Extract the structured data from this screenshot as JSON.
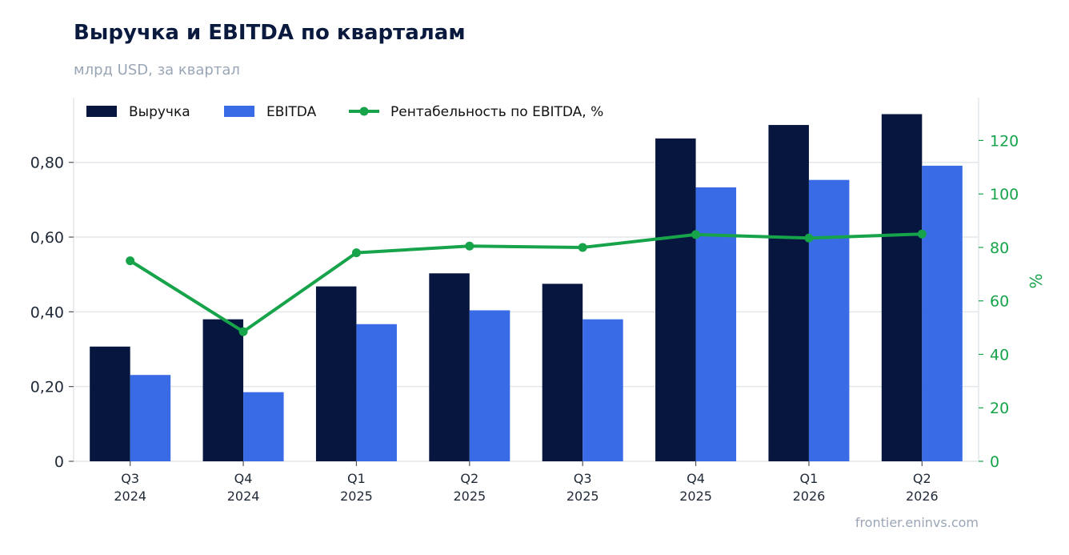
{
  "title": "Выручка и EBITDA по кварталам",
  "subtitle": "млрд USD, за квартал",
  "source": "frontier.eninvs.com",
  "colors": {
    "revenue": "#06163f",
    "ebitda": "#3a6be6",
    "margin": "#16a34a",
    "grid": "#e3e7ec",
    "axis_text": "#1f2937",
    "muted": "#9aa6b6"
  },
  "chart_data": {
    "type": "bar",
    "categories": [
      [
        "Q3",
        "2024"
      ],
      [
        "Q4",
        "2024"
      ],
      [
        "Q1",
        "2025"
      ],
      [
        "Q2",
        "2025"
      ],
      [
        "Q3",
        "2025"
      ],
      [
        "Q4",
        "2025"
      ],
      [
        "Q1",
        "2026"
      ],
      [
        "Q2",
        "2026"
      ]
    ],
    "series": [
      {
        "name": "Выручка",
        "type": "bar",
        "axis": "left",
        "values": [
          0.307,
          0.38,
          0.468,
          0.503,
          0.475,
          0.864,
          0.9,
          0.929
        ]
      },
      {
        "name": "EBITDA",
        "type": "bar",
        "axis": "left",
        "values": [
          0.231,
          0.185,
          0.367,
          0.404,
          0.38,
          0.733,
          0.753,
          0.791
        ]
      },
      {
        "name": "Рентабельность по EBITDA, %",
        "type": "line",
        "axis": "right",
        "values": [
          75,
          48.5,
          78,
          80.5,
          80,
          84.8,
          83.5,
          85
        ]
      }
    ],
    "y_left": {
      "ylim": [
        0,
        0.973
      ],
      "ticks": [
        0,
        0.2,
        0.4,
        0.6,
        0.8
      ],
      "tick_labels": [
        "0",
        "0,20",
        "0,40",
        "0,60",
        "0,80"
      ],
      "label": ""
    },
    "y_right": {
      "ylim": [
        0,
        136
      ],
      "ticks": [
        0,
        20,
        40,
        60,
        80,
        100,
        120
      ],
      "tick_labels": [
        "0",
        "20",
        "40",
        "60",
        "80",
        "100",
        "120"
      ],
      "label": "%"
    },
    "grid": true,
    "legend": "top-left"
  }
}
